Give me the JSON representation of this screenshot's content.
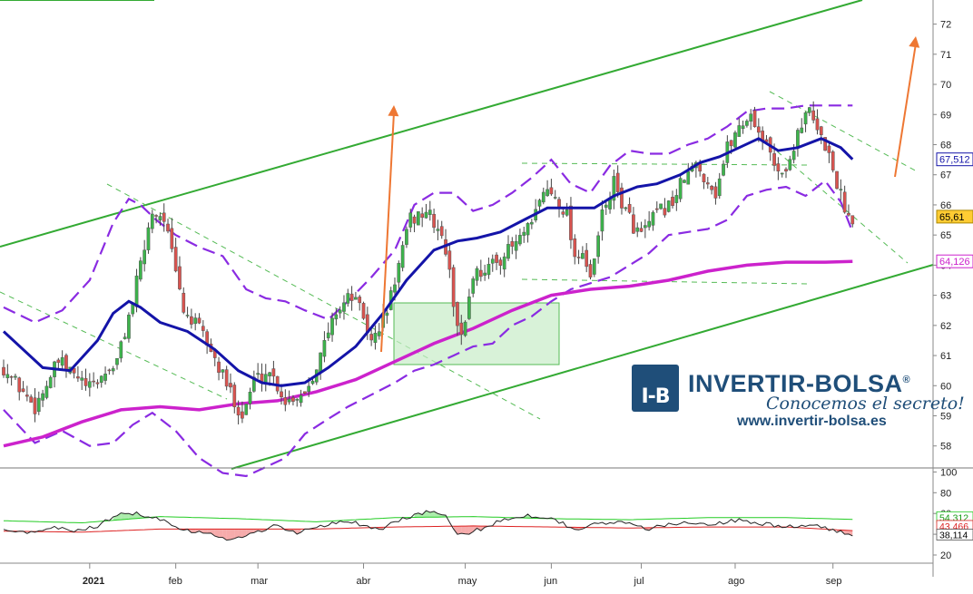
{
  "brand": {
    "name": "INVERTIR-BOLSA",
    "registered": "®",
    "slogan": "Conocemos el secreto!",
    "url": "www.invertir-bolsa.es",
    "logo_mark": "I-B"
  },
  "colors": {
    "up_candle": "#3cb44b",
    "down_candle": "#d9534f",
    "ma_short": "#1414a8",
    "ma_long": "#cc22cc",
    "bollinger": "#8a2be2",
    "channel": "#33aa33",
    "projection_arrow": "#ee7733",
    "box_fill": "#c8ecc8",
    "osc_fast": "#222222",
    "osc_green": "#22cc22",
    "osc_red": "#dd2222"
  },
  "chart_data": [
    {
      "type": "candlestick",
      "title": "",
      "x_tick_labels": [
        "2021",
        "feb",
        "mar",
        "abr",
        "may",
        "jun",
        "jul",
        "ago",
        "sep"
      ],
      "y_ticks": [
        58,
        59,
        60,
        61,
        62,
        63,
        64,
        65,
        66,
        67,
        68,
        69,
        70,
        71,
        72
      ],
      "ylim": [
        57.3,
        72.8
      ],
      "grid": false,
      "price_labels": [
        {
          "name": "last_close",
          "value": "65,61"
        },
        {
          "name": "ma_short",
          "value": "67,512"
        },
        {
          "name": "ma_long",
          "value": "64,126"
        }
      ],
      "anchors": [
        {
          "x": 0,
          "close": 60.6
        },
        {
          "x": 8,
          "close": 59.3
        },
        {
          "x": 14,
          "close": 60.8
        },
        {
          "x": 22,
          "close": 59.9
        },
        {
          "x": 29,
          "close": 60.8
        },
        {
          "x": 33,
          "close": 62.8
        },
        {
          "x": 38,
          "close": 65.8
        },
        {
          "x": 41,
          "close": 65.6
        },
        {
          "x": 46,
          "close": 62.5
        },
        {
          "x": 51,
          "close": 61.7
        },
        {
          "x": 56,
          "close": 60.3
        },
        {
          "x": 61,
          "close": 59.0
        },
        {
          "x": 64,
          "close": 60.2
        },
        {
          "x": 68,
          "close": 60.5
        },
        {
          "x": 72,
          "close": 59.5
        },
        {
          "x": 77,
          "close": 59.8
        },
        {
          "x": 81,
          "close": 61.0
        },
        {
          "x": 85,
          "close": 62.5
        },
        {
          "x": 89,
          "close": 63.0
        },
        {
          "x": 92,
          "close": 62.3
        },
        {
          "x": 94,
          "close": 61.4
        },
        {
          "x": 98,
          "close": 62.5
        },
        {
          "x": 101,
          "close": 64.0
        },
        {
          "x": 104,
          "close": 65.5
        },
        {
          "x": 108,
          "close": 65.8
        },
        {
          "x": 111,
          "close": 65.2
        },
        {
          "x": 113,
          "close": 64.5
        },
        {
          "x": 115,
          "close": 62.8
        },
        {
          "x": 117,
          "close": 61.5
        },
        {
          "x": 120,
          "close": 63.7
        },
        {
          "x": 125,
          "close": 64.0
        },
        {
          "x": 130,
          "close": 64.6
        },
        {
          "x": 135,
          "close": 65.3
        },
        {
          "x": 138,
          "close": 66.5
        },
        {
          "x": 141,
          "close": 66.3
        },
        {
          "x": 144,
          "close": 65.7
        },
        {
          "x": 146,
          "close": 64.3
        },
        {
          "x": 148,
          "close": 64.5
        },
        {
          "x": 150,
          "close": 63.4
        },
        {
          "x": 153,
          "close": 65.7
        },
        {
          "x": 156,
          "close": 66.7
        },
        {
          "x": 159,
          "close": 65.8
        },
        {
          "x": 161,
          "close": 65.3
        },
        {
          "x": 163,
          "close": 65.0
        },
        {
          "x": 167,
          "close": 65.7
        },
        {
          "x": 171,
          "close": 66.1
        },
        {
          "x": 174,
          "close": 66.9
        },
        {
          "x": 177,
          "close": 67.3
        },
        {
          "x": 180,
          "close": 66.8
        },
        {
          "x": 182,
          "close": 66.4
        },
        {
          "x": 185,
          "close": 67.9
        },
        {
          "x": 188,
          "close": 68.6
        },
        {
          "x": 191,
          "close": 69.0
        },
        {
          "x": 194,
          "close": 68.2
        },
        {
          "x": 197,
          "close": 67.4
        },
        {
          "x": 200,
          "close": 67.0
        },
        {
          "x": 203,
          "close": 68.5
        },
        {
          "x": 206,
          "close": 69.1
        },
        {
          "x": 208,
          "close": 68.4
        },
        {
          "x": 210,
          "close": 68.0
        },
        {
          "x": 212,
          "close": 67.2
        },
        {
          "x": 214,
          "close": 66.3
        },
        {
          "x": 216,
          "close": 65.6
        },
        {
          "x": 217,
          "close": 65.61
        }
      ],
      "ma_short": [
        [
          0,
          61.8
        ],
        [
          10,
          60.6
        ],
        [
          17,
          60.5
        ],
        [
          24,
          61.5
        ],
        [
          28,
          62.4
        ],
        [
          32,
          62.8
        ],
        [
          35,
          62.6
        ],
        [
          40,
          62.1
        ],
        [
          47,
          61.8
        ],
        [
          54,
          61.2
        ],
        [
          60,
          60.5
        ],
        [
          66,
          60.1
        ],
        [
          71,
          60.0
        ],
        [
          77,
          60.1
        ],
        [
          83,
          60.6
        ],
        [
          90,
          61.3
        ],
        [
          97,
          62.4
        ],
        [
          103,
          63.5
        ],
        [
          110,
          64.5
        ],
        [
          116,
          64.8
        ],
        [
          121,
          64.9
        ],
        [
          127,
          65.1
        ],
        [
          133,
          65.5
        ],
        [
          139,
          65.9
        ],
        [
          145,
          65.9
        ],
        [
          151,
          65.9
        ],
        [
          156,
          66.3
        ],
        [
          162,
          66.6
        ],
        [
          167,
          66.7
        ],
        [
          173,
          67.0
        ],
        [
          178,
          67.4
        ],
        [
          183,
          67.6
        ],
        [
          188,
          67.9
        ],
        [
          193,
          68.2
        ],
        [
          198,
          67.8
        ],
        [
          203,
          67.9
        ],
        [
          209,
          68.2
        ],
        [
          214,
          67.9
        ],
        [
          217,
          67.512
        ]
      ],
      "ma_long": [
        [
          0,
          58.0
        ],
        [
          10,
          58.3
        ],
        [
          20,
          58.8
        ],
        [
          30,
          59.2
        ],
        [
          40,
          59.3
        ],
        [
          50,
          59.2
        ],
        [
          60,
          59.4
        ],
        [
          70,
          59.5
        ],
        [
          80,
          59.8
        ],
        [
          90,
          60.2
        ],
        [
          100,
          60.8
        ],
        [
          110,
          61.4
        ],
        [
          120,
          61.9
        ],
        [
          130,
          62.5
        ],
        [
          140,
          63.0
        ],
        [
          150,
          63.2
        ],
        [
          160,
          63.3
        ],
        [
          170,
          63.5
        ],
        [
          180,
          63.8
        ],
        [
          190,
          64.0
        ],
        [
          200,
          64.1
        ],
        [
          210,
          64.1
        ],
        [
          217,
          64.126
        ]
      ],
      "bollinger_upper": [
        [
          0,
          62.6
        ],
        [
          8,
          62.1
        ],
        [
          15,
          62.5
        ],
        [
          22,
          63.5
        ],
        [
          28,
          65.4
        ],
        [
          32,
          66.2
        ],
        [
          35,
          66.0
        ],
        [
          39,
          65.5
        ],
        [
          44,
          65.0
        ],
        [
          50,
          64.6
        ],
        [
          56,
          64.3
        ],
        [
          62,
          63.2
        ],
        [
          67,
          62.9
        ],
        [
          72,
          62.8
        ],
        [
          77,
          62.5
        ],
        [
          83,
          62.2
        ],
        [
          88,
          62.8
        ],
        [
          94,
          63.6
        ],
        [
          100,
          64.5
        ],
        [
          105,
          66.0
        ],
        [
          110,
          66.4
        ],
        [
          115,
          66.4
        ],
        [
          120,
          65.8
        ],
        [
          125,
          66.0
        ],
        [
          130,
          66.4
        ],
        [
          135,
          66.9
        ],
        [
          140,
          67.5
        ],
        [
          145,
          66.7
        ],
        [
          150,
          66.4
        ],
        [
          155,
          67.3
        ],
        [
          160,
          67.8
        ],
        [
          165,
          67.7
        ],
        [
          170,
          67.7
        ],
        [
          175,
          68.0
        ],
        [
          180,
          68.2
        ],
        [
          185,
          68.6
        ],
        [
          190,
          69.1
        ],
        [
          195,
          69.2
        ],
        [
          200,
          69.2
        ],
        [
          205,
          69.3
        ],
        [
          210,
          69.3
        ],
        [
          214,
          69.3
        ],
        [
          217,
          69.3
        ]
      ],
      "bollinger_lower": [
        [
          0,
          59.2
        ],
        [
          8,
          58.1
        ],
        [
          15,
          58.5
        ],
        [
          22,
          58.0
        ],
        [
          28,
          58.1
        ],
        [
          33,
          58.7
        ],
        [
          38,
          59.1
        ],
        [
          44,
          58.5
        ],
        [
          50,
          57.6
        ],
        [
          56,
          57.1
        ],
        [
          62,
          57.0
        ],
        [
          67,
          57.3
        ],
        [
          72,
          57.6
        ],
        [
          77,
          58.4
        ],
        [
          83,
          58.9
        ],
        [
          88,
          59.3
        ],
        [
          94,
          59.7
        ],
        [
          100,
          60.1
        ],
        [
          105,
          60.5
        ],
        [
          110,
          60.7
        ],
        [
          115,
          61.0
        ],
        [
          120,
          61.3
        ],
        [
          125,
          61.4
        ],
        [
          130,
          62.0
        ],
        [
          135,
          62.3
        ],
        [
          140,
          62.8
        ],
        [
          145,
          63.2
        ],
        [
          150,
          63.4
        ],
        [
          155,
          63.6
        ],
        [
          160,
          64.0
        ],
        [
          165,
          64.4
        ],
        [
          170,
          65.0
        ],
        [
          175,
          65.1
        ],
        [
          180,
          65.2
        ],
        [
          185,
          65.5
        ],
        [
          190,
          66.3
        ],
        [
          195,
          66.5
        ],
        [
          200,
          66.6
        ],
        [
          205,
          66.3
        ],
        [
          210,
          66.8
        ],
        [
          214,
          66.1
        ],
        [
          217,
          65.1
        ]
      ]
    },
    {
      "type": "line",
      "title": "",
      "y_ticks": [
        20,
        40,
        60,
        80,
        100
      ],
      "ylim": [
        13,
        103
      ],
      "grid": false,
      "value_labels": [
        {
          "name": "osc_green",
          "value": "54,312"
        },
        {
          "name": "osc_red",
          "value": "43,466"
        },
        {
          "name": "osc_fast",
          "value": "38,114"
        }
      ],
      "series": [
        {
          "key": "fast",
          "points": [
            [
              0,
              45
            ],
            [
              6,
              42
            ],
            [
              12,
              47
            ],
            [
              18,
              43
            ],
            [
              24,
              48
            ],
            [
              30,
              62
            ],
            [
              34,
              60
            ],
            [
              40,
              55
            ],
            [
              46,
              45
            ],
            [
              52,
              40
            ],
            [
              58,
              35
            ],
            [
              63,
              40
            ],
            [
              69,
              48
            ],
            [
              75,
              42
            ],
            [
              80,
              47
            ],
            [
              86,
              53
            ],
            [
              91,
              50
            ],
            [
              96,
              44
            ],
            [
              102,
              55
            ],
            [
              108,
              62
            ],
            [
              113,
              58
            ],
            [
              116,
              38
            ],
            [
              122,
              45
            ],
            [
              128,
              55
            ],
            [
              134,
              58
            ],
            [
              140,
              56
            ],
            [
              146,
              45
            ],
            [
              152,
              50
            ],
            [
              158,
              52
            ],
            [
              164,
              45
            ],
            [
              170,
              49
            ],
            [
              176,
              52
            ],
            [
              182,
              50
            ],
            [
              188,
              54
            ],
            [
              194,
              50
            ],
            [
              200,
              47
            ],
            [
              206,
              49
            ],
            [
              212,
              44
            ],
            [
              217,
              38
            ]
          ]
        },
        {
          "key": "green",
          "points": [
            [
              0,
              53
            ],
            [
              20,
              51
            ],
            [
              40,
              57
            ],
            [
              60,
              55
            ],
            [
              80,
              52
            ],
            [
              100,
              56
            ],
            [
              120,
              57
            ],
            [
              140,
              55
            ],
            [
              160,
              54
            ],
            [
              180,
              56
            ],
            [
              200,
              56
            ],
            [
              217,
              54.3
            ]
          ]
        },
        {
          "key": "red",
          "points": [
            [
              0,
              43
            ],
            [
              20,
              42
            ],
            [
              40,
              45
            ],
            [
              60,
              45
            ],
            [
              80,
              45
            ],
            [
              100,
              47
            ],
            [
              120,
              48
            ],
            [
              140,
              47
            ],
            [
              160,
              46
            ],
            [
              180,
              47
            ],
            [
              200,
              47
            ],
            [
              217,
              43.5
            ]
          ]
        }
      ]
    }
  ]
}
